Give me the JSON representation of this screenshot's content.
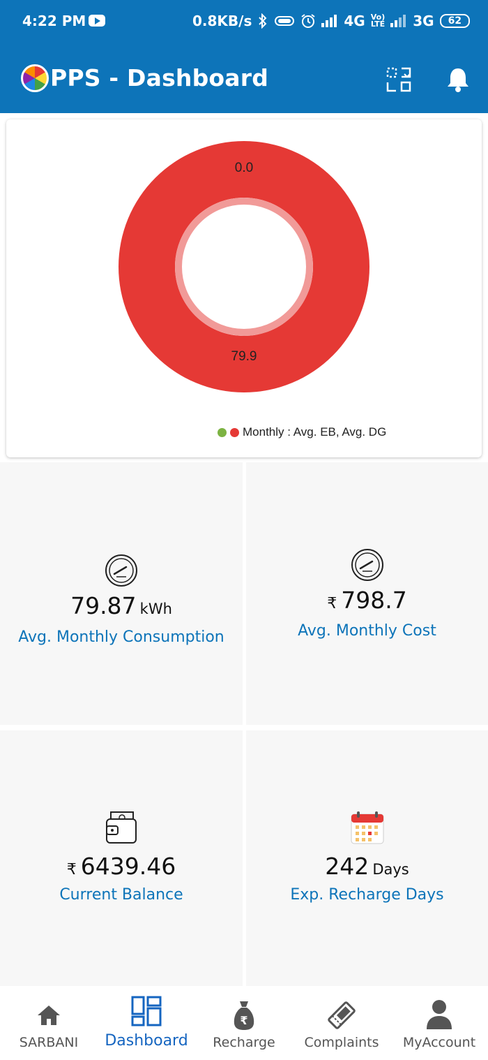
{
  "status_bar": {
    "time": "4:22 PM",
    "net_speed": "0.8KB/s",
    "net1": "4G",
    "volte_top": "Vo)",
    "volte_bottom": "LTE",
    "net2": "3G",
    "battery": "62"
  },
  "app_bar": {
    "title": "PPS - Dashboard",
    "icons": [
      "logo-icon",
      "qr-scan-icon",
      "bell-icon"
    ]
  },
  "chart_data": {
    "type": "pie",
    "labels": [
      "Avg. EB",
      "Avg. DG"
    ],
    "values": [
      0.0,
      79.9
    ],
    "value_labels": [
      "0.0",
      "79.9"
    ],
    "colors": [
      "#7cb342",
      "#e53935"
    ],
    "legend_text": "Monthly : Avg. EB, Avg. DG",
    "legend_position": "bottom"
  },
  "tiles": [
    {
      "icon": "speedometer-icon",
      "value": "79.87",
      "unit": "kWh",
      "label": "Avg. Monthly Consumption"
    },
    {
      "icon": "speedometer-icon",
      "currency": "₹",
      "value": "798.7",
      "label": "Avg. Monthly Cost"
    },
    {
      "icon": "wallet-icon",
      "currency": "₹",
      "value": "6439.46",
      "label": "Current Balance"
    },
    {
      "icon": "calendar-icon",
      "value": "242",
      "unit": "Days",
      "label": "Exp. Recharge Days"
    }
  ],
  "nav": {
    "active": "Dashboard",
    "items": [
      {
        "icon": "home-icon",
        "label": "SARBANI"
      },
      {
        "icon": "dashboard-icon",
        "label": "Dashboard"
      },
      {
        "icon": "rupee-bag-icon",
        "label": "Recharge"
      },
      {
        "icon": "ticket-icon",
        "label": "Complaints"
      },
      {
        "icon": "person-icon",
        "label": "MyAccount"
      }
    ]
  },
  "colors": {
    "primary": "#0d74b9",
    "accent_red": "#e53935",
    "accent_green": "#7cb342"
  }
}
